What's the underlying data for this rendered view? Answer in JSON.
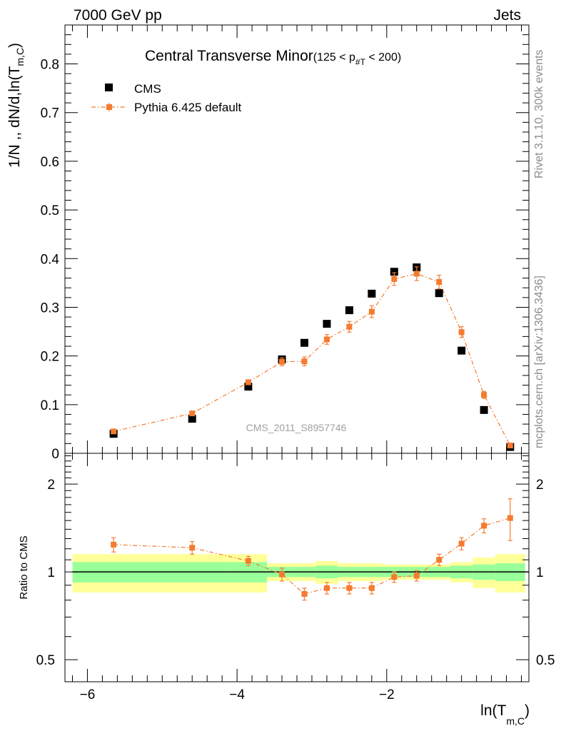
{
  "header": {
    "energy_label": "7000 GeV pp",
    "category_label": "Jets"
  },
  "side_labels": {
    "rivet": "Rivet 3.1.10,  300k events",
    "mcplots": "mcplots.cern.ch [arXiv:1306.3436]"
  },
  "chart_data": [
    {
      "type": "scatter",
      "title_main": "Central Transverse Minor",
      "title_cut_open": "(125 < p",
      "title_cut_sub": "#T",
      "title_cut_close": " < 200)",
      "ylabel_main": "1/N ,, dN/d,ln(T",
      "ylabel_sub": "m,C",
      "ylabel_close": ")",
      "watermark": "CMS_2011_S8957746",
      "xlim": [
        -6.3,
        -0.1
      ],
      "ylim": [
        0,
        0.88
      ],
      "y_ticks": [
        0,
        0.1,
        0.2,
        0.3,
        0.4,
        0.5,
        0.6,
        0.7,
        0.8
      ],
      "y_tick_labels": [
        "0",
        "0.1",
        "0.2",
        "0.3",
        "0.4",
        "0.5",
        "0.6",
        "0.7",
        "0.8"
      ],
      "legend_position": "top-left",
      "x": [
        -5.65,
        -4.6,
        -3.85,
        -3.4,
        -3.1,
        -2.8,
        -2.5,
        -2.2,
        -1.9,
        -1.6,
        -1.3,
        -1.0,
        -0.7,
        -0.35
      ],
      "series": [
        {
          "name": "CMS",
          "color": "#000000",
          "marker": "square",
          "values": [
            0.04,
            0.071,
            0.137,
            0.193,
            0.227,
            0.266,
            0.294,
            0.328,
            0.373,
            0.382,
            0.329,
            0.211,
            0.089,
            0.013
          ]
        },
        {
          "name": "Pythia 6.425 default",
          "color": "#f47b2f",
          "marker": "square",
          "line": "dash-dot",
          "values": [
            0.045,
            0.082,
            0.146,
            0.188,
            0.189,
            0.234,
            0.26,
            0.291,
            0.358,
            0.369,
            0.352,
            0.249,
            0.12,
            0.016
          ],
          "errors": [
            0.003,
            0.004,
            0.005,
            0.008,
            0.009,
            0.01,
            0.011,
            0.012,
            0.013,
            0.014,
            0.014,
            0.011,
            0.007,
            0.003
          ]
        }
      ]
    },
    {
      "type": "scatter",
      "ylabel": "Ratio to CMS",
      "xlabel_main": "ln(T",
      "xlabel_sub": "m,C",
      "xlabel_close": ")",
      "xlim": [
        -6.3,
        -0.1
      ],
      "ylim": [
        0.42,
        2.55
      ],
      "log_y": true,
      "y_ticks": [
        0.5,
        1,
        2
      ],
      "y_tick_labels": [
        "0.5",
        "1",
        "2"
      ],
      "x_ticks": [
        -6,
        -4,
        -2
      ],
      "x_tick_labels": [
        "−6",
        "−4",
        "−2"
      ],
      "band_colors": {
        "outer": "#ffff99",
        "inner": "#99ff99"
      },
      "band_edges": [
        -6.2,
        -4.15,
        -3.6,
        -3.25,
        -2.95,
        -2.65,
        -2.35,
        -2.05,
        -1.75,
        -1.45,
        -1.15,
        -0.85,
        -0.55,
        -0.15
      ],
      "band_inner_halfwidth": [
        0.08,
        0.08,
        0.04,
        0.04,
        0.05,
        0.04,
        0.04,
        0.04,
        0.04,
        0.04,
        0.05,
        0.06,
        0.07,
        0.08
      ],
      "band_outer_halfwidth": [
        0.15,
        0.15,
        0.07,
        0.07,
        0.09,
        0.07,
        0.07,
        0.06,
        0.06,
        0.06,
        0.08,
        0.12,
        0.15,
        0.18
      ],
      "x": [
        -5.65,
        -4.6,
        -3.85,
        -3.4,
        -3.1,
        -2.8,
        -2.5,
        -2.2,
        -1.9,
        -1.6,
        -1.3,
        -1.0,
        -0.7,
        -0.35
      ],
      "series": [
        {
          "name": "Pythia 6.425 default",
          "color": "#f47b2f",
          "values": [
            1.24,
            1.21,
            1.09,
            0.98,
            0.84,
            0.88,
            0.88,
            0.88,
            0.96,
            0.97,
            1.1,
            1.25,
            1.44,
            1.53
          ],
          "errors": [
            0.07,
            0.06,
            0.04,
            0.05,
            0.04,
            0.04,
            0.04,
            0.04,
            0.04,
            0.04,
            0.05,
            0.06,
            0.08,
            0.25
          ]
        }
      ]
    }
  ]
}
